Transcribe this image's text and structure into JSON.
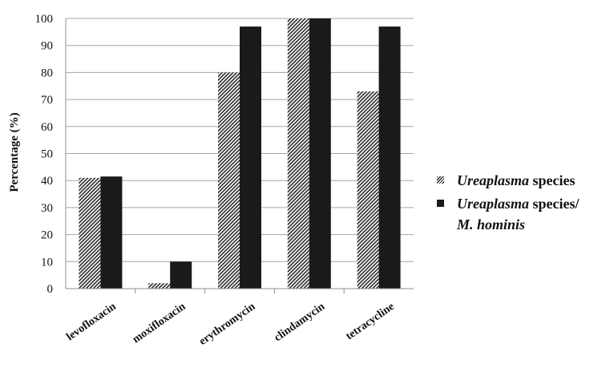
{
  "chart_data": {
    "type": "bar",
    "title": "",
    "xlabel": "",
    "ylabel": "Percentage (%)",
    "ylim": [
      0,
      100
    ],
    "yticks": [
      0,
      10,
      20,
      30,
      40,
      50,
      60,
      70,
      80,
      90,
      100
    ],
    "categories": [
      "levofloxacin",
      "moxifloxacin",
      "erythromycin",
      "clindamycin",
      "tetracycline"
    ],
    "series": [
      {
        "name": "Ureaplasma species",
        "pattern": "hatched",
        "values": [
          41,
          2,
          80,
          100,
          73
        ]
      },
      {
        "name": "Ureaplasma species/ M. hominis",
        "pattern": "solid",
        "values": [
          41.5,
          10,
          97,
          100,
          97
        ]
      }
    ],
    "grid": true,
    "legend_position": "right",
    "colors": {
      "solid": "#1a1a1a",
      "hatch": "#2a2a2a",
      "grid": "#a6a6a6",
      "axis": "#8c8c8c"
    }
  },
  "legend": {
    "item1_italic": "Ureaplasma",
    "item1_rest": " species",
    "item2_italic": "Ureaplasma",
    "item2_rest": " species/",
    "item2_line2": "M. hominis"
  }
}
